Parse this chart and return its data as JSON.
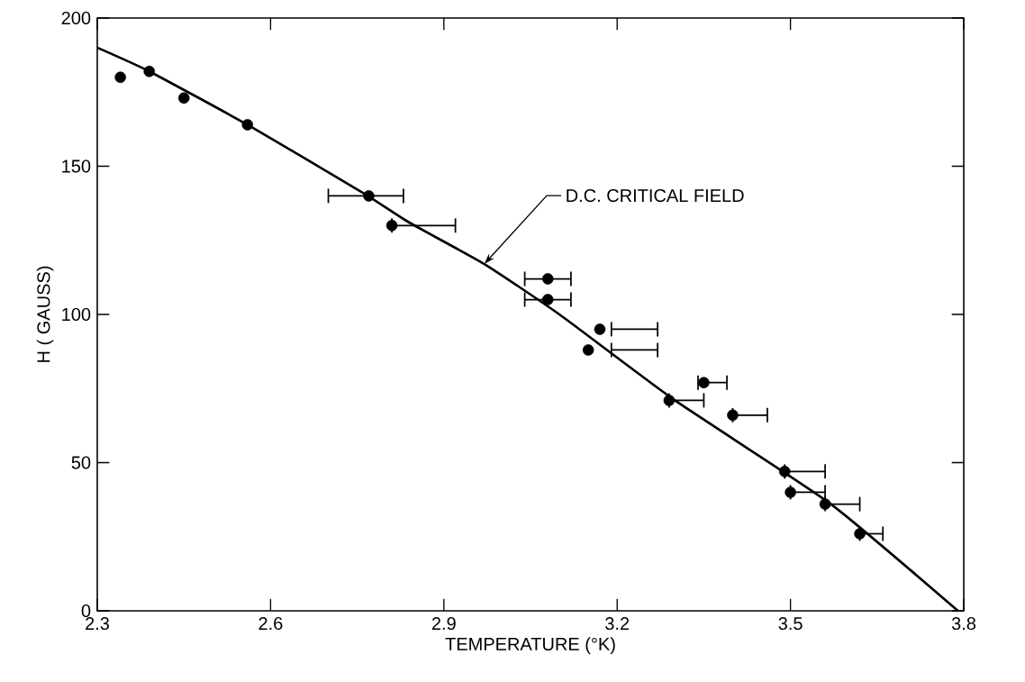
{
  "chart_data": {
    "type": "scatter",
    "xlabel": "TEMPERATURE (°K)",
    "ylabel": "H ( GAUSS)",
    "xlim": [
      2.3,
      3.8
    ],
    "ylim": [
      0,
      200
    ],
    "xticks": [
      2.3,
      2.6,
      2.9,
      3.2,
      3.5,
      3.8
    ],
    "yticks": [
      0,
      50,
      100,
      150,
      200
    ],
    "marker": "circle",
    "grid": false,
    "series": [
      {
        "color": "#000000",
        "x": [
          2.34,
          2.39,
          2.45,
          2.56,
          2.77,
          2.81,
          3.08,
          3.08,
          3.17,
          3.15,
          3.35,
          3.29,
          3.4,
          3.49,
          3.5,
          3.56,
          3.62
        ],
        "values": [
          180,
          182,
          173,
          164,
          140,
          130,
          112,
          105,
          95,
          88,
          77,
          71,
          66,
          47,
          40,
          36,
          26
        ],
        "xerrors": [
          null,
          null,
          null,
          null,
          [
            2.7,
            2.83
          ],
          [
            2.81,
            2.92
          ],
          [
            3.04,
            3.12
          ],
          [
            3.04,
            3.12
          ],
          [
            3.19,
            3.27
          ],
          [
            3.19,
            3.27
          ],
          [
            3.34,
            3.39
          ],
          [
            3.29,
            3.35
          ],
          [
            3.4,
            3.46
          ],
          [
            3.49,
            3.56
          ],
          [
            3.5,
            3.56
          ],
          [
            3.56,
            3.62
          ],
          [
            3.62,
            3.66
          ]
        ]
      },
      {
        "type": "line",
        "color": "#000000",
        "marker": "none",
        "line_style": "solid",
        "x": [
          2.3,
          2.39,
          2.56,
          2.76,
          2.84,
          2.97,
          3.1,
          3.3,
          3.57,
          3.79
        ],
        "values": [
          190,
          182,
          164,
          141,
          131,
          117,
          100,
          71,
          36,
          0
        ]
      }
    ],
    "annotations": [
      {
        "text": "D.C. CRITICAL FIELD",
        "x": 2.97,
        "y": 117
      }
    ]
  }
}
